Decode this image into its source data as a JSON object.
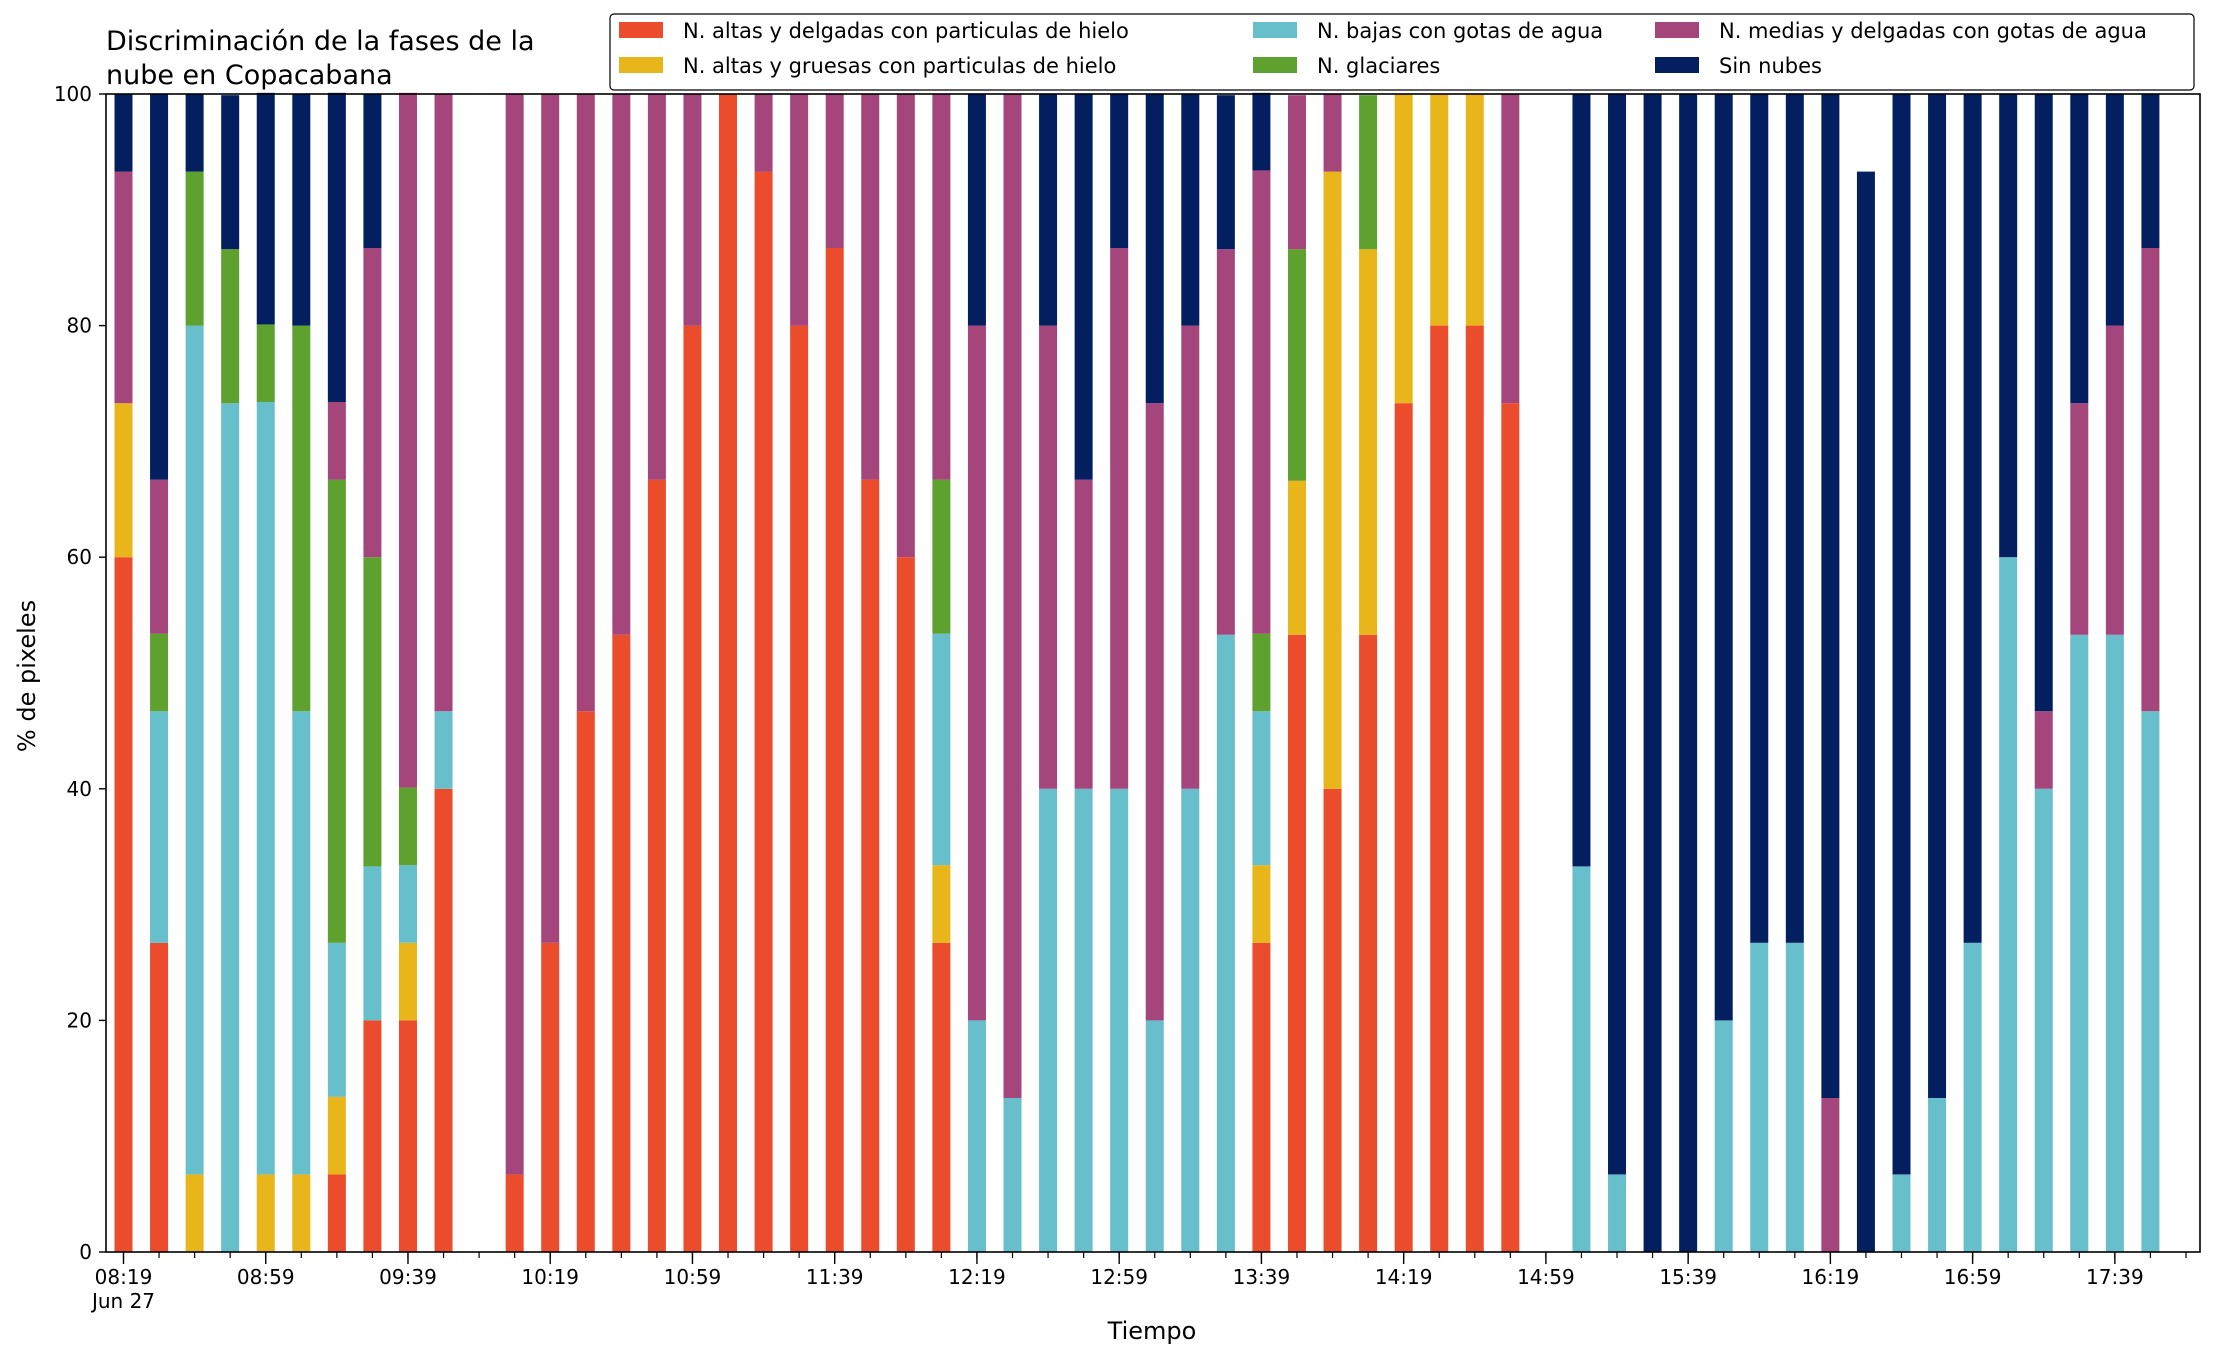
{
  "chart_data": {
    "type": "bar",
    "stacked": true,
    "title_lines": [
      "Discriminación de la fases de la",
      "nube en Copacabana"
    ],
    "xlabel": "Tiempo",
    "ylabel": "% de pixeles",
    "ylim": [
      0,
      100
    ],
    "yticks": [
      0,
      20,
      40,
      60,
      80,
      100
    ],
    "grid": false,
    "legend_position": "top-right",
    "x_major_ticks": [
      {
        "index": 0,
        "label": "08:19",
        "sublabel": "Jun 27"
      },
      {
        "index": 4,
        "label": "08:59"
      },
      {
        "index": 8,
        "label": "09:39"
      },
      {
        "index": 12,
        "label": "10:19"
      },
      {
        "index": 16,
        "label": "10:59"
      },
      {
        "index": 20,
        "label": "11:39"
      },
      {
        "index": 24,
        "label": "12:19"
      },
      {
        "index": 28,
        "label": "12:59"
      },
      {
        "index": 32,
        "label": "13:39"
      },
      {
        "index": 36,
        "label": "14:19"
      },
      {
        "index": 40,
        "label": "14:59"
      },
      {
        "index": 44,
        "label": "15:39"
      },
      {
        "index": 48,
        "label": "16:19"
      },
      {
        "index": 52,
        "label": "16:59"
      },
      {
        "index": 56,
        "label": "17:39"
      }
    ],
    "categories": [
      "08:19",
      "08:29",
      "08:39",
      "08:49",
      "08:59",
      "09:09",
      "09:19",
      "09:29",
      "09:39",
      "09:49",
      "09:59",
      "10:09",
      "10:19",
      "10:29",
      "10:39",
      "10:49",
      "10:59",
      "11:09",
      "11:19",
      "11:29",
      "11:39",
      "11:49",
      "11:59",
      "12:09",
      "12:19",
      "12:29",
      "12:39",
      "12:49",
      "12:59",
      "13:09",
      "13:19",
      "13:29",
      "13:39",
      "13:49",
      "13:59",
      "14:09",
      "14:19",
      "14:29",
      "14:39",
      "14:49",
      "14:59",
      "15:09",
      "15:19",
      "15:29",
      "15:39",
      "15:49",
      "15:59",
      "16:09",
      "16:19",
      "16:29",
      "16:39",
      "16:49",
      "16:59",
      "17:09",
      "17:19",
      "17:29",
      "17:39",
      "17:49"
    ],
    "series": [
      {
        "name": "N. altas y delgadas con particulas de hielo",
        "color": "#EA4C2C",
        "values": [
          60,
          26.7,
          0,
          0,
          0,
          0,
          6.7,
          20,
          20,
          40,
          0,
          6.7,
          26.7,
          46.7,
          53.3,
          66.7,
          80,
          100,
          93.3,
          80,
          86.7,
          66.7,
          60,
          26.7,
          0,
          0,
          0,
          0,
          0,
          0,
          0,
          0,
          26.7,
          53.3,
          40,
          53.3,
          73.3,
          80,
          80,
          73.3,
          0,
          0,
          0,
          0,
          0,
          0,
          0,
          0,
          0,
          0,
          0,
          0,
          0,
          0,
          0,
          0,
          0,
          0
        ]
      },
      {
        "name": "N. altas y gruesas con particulas de hielo",
        "color": "#E8B51A",
        "values": [
          13.3,
          0,
          6.7,
          0,
          6.7,
          6.7,
          6.7,
          0,
          6.7,
          0,
          0,
          0,
          0,
          0,
          0,
          0,
          0,
          0,
          0,
          0,
          0,
          0,
          0,
          6.7,
          0,
          0,
          0,
          0,
          0,
          0,
          0,
          0,
          6.7,
          13.3,
          53.3,
          33.3,
          26.7,
          20,
          20,
          0,
          0,
          0,
          0,
          0,
          0,
          0,
          0,
          0,
          0,
          0,
          0,
          0,
          0,
          0,
          0,
          0,
          0,
          0
        ]
      },
      {
        "name": "N. bajas con gotas de agua",
        "color": "#66BFCB",
        "values": [
          0,
          20,
          73.3,
          73.3,
          66.7,
          40,
          13.3,
          13.3,
          6.7,
          6.7,
          0,
          0,
          0,
          0,
          0,
          0,
          0,
          0,
          0,
          0,
          0,
          0,
          0,
          20,
          20,
          13.3,
          40,
          40,
          40,
          20,
          40,
          53.3,
          13.3,
          0,
          0,
          0,
          0,
          0,
          0,
          0,
          0,
          33.3,
          6.7,
          0,
          0,
          20,
          26.7,
          26.7,
          0,
          0,
          6.7,
          13.3,
          26.7,
          60,
          40,
          53.3,
          53.3,
          46.7
        ]
      },
      {
        "name": "N. glaciares",
        "color": "#5EA12F",
        "values": [
          0,
          6.7,
          13.3,
          13.3,
          6.7,
          33.3,
          40,
          26.7,
          6.7,
          0,
          0,
          0,
          0,
          0,
          0,
          0,
          0,
          0,
          0,
          0,
          0,
          0,
          0,
          13.3,
          0,
          0,
          0,
          0,
          0,
          0,
          0,
          0,
          6.7,
          20,
          0,
          13.3,
          0,
          0,
          0,
          0,
          0,
          0,
          0,
          0,
          0,
          0,
          0,
          0,
          0,
          0,
          0,
          0,
          0,
          0,
          0,
          0,
          0,
          0
        ]
      },
      {
        "name": "N. medias y delgadas con gotas de agua",
        "color": "#A4467C",
        "values": [
          20,
          13.3,
          0,
          0,
          0,
          0,
          6.7,
          26.7,
          60,
          53.3,
          0,
          93.3,
          73.3,
          53.3,
          46.7,
          33.3,
          20,
          0,
          6.7,
          20,
          13.3,
          33.3,
          40,
          33.3,
          60,
          86.7,
          40,
          26.7,
          46.7,
          53.3,
          40,
          33.3,
          40,
          13.3,
          6.7,
          0,
          0,
          0,
          0,
          26.7,
          0,
          0,
          0,
          0,
          0,
          0,
          0,
          0,
          13.3,
          0,
          0,
          0,
          0,
          0,
          6.7,
          20,
          26.7,
          40
        ]
      },
      {
        "name": "Sin nubes",
        "color": "#031F60",
        "values": [
          6.7,
          33.3,
          6.7,
          13.3,
          20,
          20,
          26.7,
          13.3,
          0,
          0,
          0,
          0,
          0,
          0,
          0,
          0,
          0,
          0,
          0,
          0,
          0,
          0,
          0,
          0,
          20,
          0,
          20,
          33.3,
          13.3,
          26.7,
          20,
          13.3,
          6.7,
          0,
          0,
          0,
          0,
          0,
          0,
          0,
          0,
          66.7,
          93.3,
          100,
          100,
          80,
          73.3,
          73.3,
          86.7,
          93.3,
          93.3,
          86.7,
          73.3,
          40,
          53.3,
          26.7,
          20,
          13.3
        ]
      }
    ]
  }
}
